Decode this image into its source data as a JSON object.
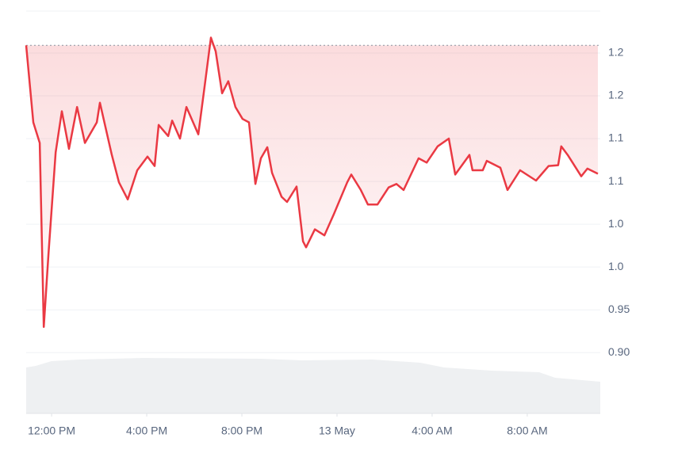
{
  "chart_data": {
    "type": "line",
    "x": [
      -1.07,
      -0.77,
      -0.5,
      -0.33,
      -0.13,
      0.17,
      0.43,
      0.73,
      1.07,
      1.4,
      1.9,
      2.03,
      2.53,
      2.83,
      3.2,
      3.6,
      4.03,
      4.33,
      4.5,
      4.9,
      5.07,
      5.4,
      5.67,
      6.17,
      6.43,
      6.7,
      6.9,
      7.17,
      7.43,
      7.73,
      8.03,
      8.3,
      8.57,
      8.8,
      9.07,
      9.27,
      9.67,
      9.9,
      10.3,
      10.57,
      10.7,
      11.07,
      11.47,
      11.87,
      12.43,
      12.6,
      13.0,
      13.3,
      13.7,
      14.17,
      14.5,
      14.8,
      15.43,
      15.77,
      16.23,
      16.7,
      16.97,
      17.57,
      17.7,
      18.13,
      18.3,
      18.87,
      19.17,
      19.7,
      20.37,
      20.9,
      21.3,
      21.43,
      21.7,
      22.27,
      22.53,
      22.97
    ],
    "series": [
      {
        "color": "#ea3943",
        "values": [
          1.259,
          1.169,
          1.145,
          0.93,
          1.016,
          1.134,
          1.182,
          1.138,
          1.187,
          1.145,
          1.169,
          1.192,
          1.131,
          1.099,
          1.079,
          1.113,
          1.129,
          1.118,
          1.166,
          1.153,
          1.171,
          1.15,
          1.187,
          1.155,
          1.21,
          1.268,
          1.252,
          1.203,
          1.217,
          1.187,
          1.173,
          1.169,
          1.097,
          1.127,
          1.14,
          1.11,
          1.082,
          1.076,
          1.094,
          1.03,
          1.023,
          1.044,
          1.037,
          1.062,
          1.099,
          1.108,
          1.09,
          1.073,
          1.073,
          1.093,
          1.097,
          1.09,
          1.127,
          1.122,
          1.141,
          1.15,
          1.108,
          1.131,
          1.113,
          1.113,
          1.124,
          1.116,
          1.09,
          1.113,
          1.101,
          1.118,
          1.119,
          1.141,
          1.131,
          1.106,
          1.115,
          1.109
        ]
      }
    ],
    "xlim": [
      -1.07,
      23.07
    ],
    "xticks": [
      {
        "value": 0,
        "label": "12:00 PM"
      },
      {
        "value": 4,
        "label": "4:00 PM"
      },
      {
        "value": 8,
        "label": "8:00 PM"
      },
      {
        "value": 12,
        "label": "13 May"
      },
      {
        "value": 16,
        "label": "4:00 AM"
      },
      {
        "value": 20,
        "label": "8:00 AM"
      }
    ],
    "ylim": [
      0.829,
      1.299
    ],
    "yticks": [
      {
        "value": 0.9,
        "label": "0.90"
      },
      0.95,
      {
        "value": 1,
        "label": "1.0"
      },
      {
        "value": 1.05,
        "label": "1.0"
      },
      1.1,
      {
        "value": 1.15,
        "label": "1.1"
      },
      1.2,
      {
        "value": 1.25,
        "label": "1.2"
      }
    ],
    "grid": true
  }
}
